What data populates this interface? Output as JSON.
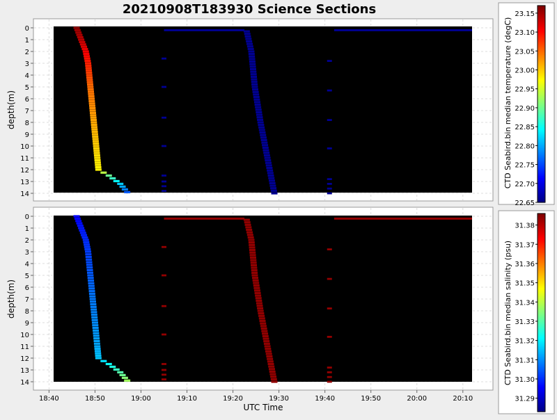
{
  "title": "20210908T183930 Science Sections",
  "chart_data": [
    {
      "type": "heatmap",
      "title": "",
      "xlabel": "",
      "ylabel": "depth(m)",
      "colorbar_label": "CTD Seabird.bin median temperature (degC)",
      "colorbar_ticks": [
        "22.65",
        "22.70",
        "22.75",
        "22.80",
        "22.85",
        "22.90",
        "22.95",
        "23.00",
        "23.05",
        "23.10",
        "23.15"
      ],
      "colorbar_range": [
        22.65,
        23.17
      ],
      "ylim": [
        0,
        14
      ],
      "y_ticks": [
        "0",
        "1",
        "2",
        "3",
        "4",
        "5",
        "6",
        "7",
        "8",
        "9",
        "10",
        "11",
        "12",
        "13",
        "14"
      ],
      "series": [
        {
          "profile": "descent 1",
          "points": [
            {
              "time": "18:46:00",
              "depth": 0,
              "value": 23.16
            },
            {
              "time": "18:47:00",
              "depth": 1,
              "value": 23.14
            },
            {
              "time": "18:48:00",
              "depth": 2,
              "value": 23.11
            },
            {
              "time": "18:48:30",
              "depth": 3,
              "value": 23.09
            },
            {
              "time": "18:48:45",
              "depth": 4,
              "value": 23.07
            },
            {
              "time": "18:49:00",
              "depth": 5,
              "value": 23.05
            },
            {
              "time": "18:49:15",
              "depth": 6,
              "value": 23.04
            },
            {
              "time": "18:49:30",
              "depth": 7,
              "value": 23.03
            },
            {
              "time": "18:49:45",
              "depth": 8,
              "value": 23.02
            },
            {
              "time": "18:50:00",
              "depth": 9,
              "value": 23.01
            },
            {
              "time": "18:50:15",
              "depth": 10,
              "value": 23.0
            },
            {
              "time": "18:50:30",
              "depth": 11,
              "value": 22.99
            },
            {
              "time": "18:50:45",
              "depth": 12,
              "value": 22.98
            },
            {
              "time": "18:53:00",
              "depth": 12.5,
              "value": 22.9
            },
            {
              "time": "18:55:30",
              "depth": 13.2,
              "value": 22.82
            },
            {
              "time": "18:57:00",
              "depth": 13.9,
              "value": 22.76
            }
          ]
        },
        {
          "profile": "descent 2",
          "points": [
            {
              "time": "19:23:00",
              "depth": 0.3,
              "value": 22.66
            },
            {
              "time": "19:24:00",
              "depth": 2,
              "value": 22.66
            },
            {
              "time": "19:24:45",
              "depth": 5,
              "value": 22.66
            },
            {
              "time": "19:26:00",
              "depth": 8,
              "value": 22.66
            },
            {
              "time": "19:27:30",
              "depth": 11,
              "value": 22.66
            },
            {
              "time": "19:29:00",
              "depth": 14,
              "value": 22.66
            }
          ]
        }
      ]
    },
    {
      "type": "heatmap",
      "title": "",
      "xlabel": "UTC Time",
      "ylabel": "depth(m)",
      "colorbar_label": "CTD Seabird.bin median salinity (psu)",
      "colorbar_ticks": [
        "31.29",
        "31.30",
        "31.31",
        "31.32",
        "31.33",
        "31.34",
        "31.35",
        "31.36",
        "31.37",
        "31.38"
      ],
      "colorbar_range": [
        31.283,
        31.386
      ],
      "ylim": [
        0,
        14
      ],
      "x_ticks": [
        "18:40",
        "18:50",
        "19:00",
        "19:10",
        "19:20",
        "19:30",
        "19:40",
        "19:50",
        "20:00",
        "20:10"
      ],
      "y_ticks": [
        "0",
        "1",
        "2",
        "3",
        "4",
        "5",
        "6",
        "7",
        "8",
        "9",
        "10",
        "11",
        "12",
        "13",
        "14"
      ],
      "series": [
        {
          "profile": "descent 1",
          "points": [
            {
              "time": "18:46:00",
              "depth": 0,
              "value": 31.295
            },
            {
              "time": "18:47:00",
              "depth": 1,
              "value": 31.298
            },
            {
              "time": "18:48:00",
              "depth": 2,
              "value": 31.3
            },
            {
              "time": "18:48:30",
              "depth": 3,
              "value": 31.302
            },
            {
              "time": "18:49:00",
              "depth": 5,
              "value": 31.305
            },
            {
              "time": "18:49:30",
              "depth": 7,
              "value": 31.308
            },
            {
              "time": "18:50:00",
              "depth": 9,
              "value": 31.31
            },
            {
              "time": "18:50:30",
              "depth": 11,
              "value": 31.313
            },
            {
              "time": "18:50:45",
              "depth": 12,
              "value": 31.316
            },
            {
              "time": "18:53:00",
              "depth": 12.5,
              "value": 31.322
            },
            {
              "time": "18:55:30",
              "depth": 13.2,
              "value": 31.33
            },
            {
              "time": "18:57:00",
              "depth": 13.9,
              "value": 31.338
            }
          ]
        },
        {
          "profile": "descent 2",
          "points": [
            {
              "time": "19:23:00",
              "depth": 0.3,
              "value": 31.384
            },
            {
              "time": "19:24:00",
              "depth": 2,
              "value": 31.384
            },
            {
              "time": "19:24:45",
              "depth": 5,
              "value": 31.384
            },
            {
              "time": "19:26:00",
              "depth": 8,
              "value": 31.384
            },
            {
              "time": "19:27:30",
              "depth": 11,
              "value": 31.384
            },
            {
              "time": "19:29:00",
              "depth": 14,
              "value": 31.384
            }
          ]
        }
      ]
    }
  ]
}
